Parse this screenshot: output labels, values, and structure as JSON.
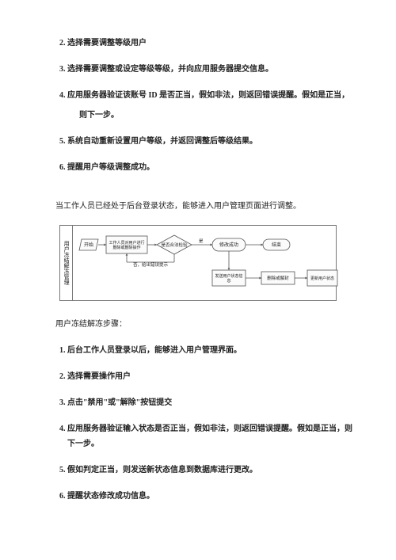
{
  "list1": {
    "start": 2,
    "items": [
      "选择需要调整等级用户",
      "选择需要调整或设定等级等级，并向应用服务器提交信息。",
      "应用服务器验证该账号 ID 是否正当，假如非法，则返回错误提醒。假如是正当，",
      "系统自动重新设置用户等级，并返回调整后等级结果。",
      "提醒用户等级调整成功。"
    ],
    "cont": "则下一步。"
  },
  "para1": "当工作人员已经处于后台登录状态，能够进入用户管理页面进行调整。",
  "diagram": {
    "sidebar": "用户冻结解冻管理",
    "node_start": "开始",
    "node_staff": "工作人员对用户进行删除或删除操作",
    "node_check": "是否合法检验",
    "yes": "是",
    "node_modify": "修改成功",
    "node_end": "结束",
    "no": "否，给出错误提示",
    "node_send": "发送用户状态信息",
    "node_db": "删除或解封",
    "node_update": "更新用户状态",
    "colors": {
      "line": "#555555",
      "fill": "#fbfbfb",
      "text": "#222222"
    }
  },
  "section2": "用户冻结解冻步骤：",
  "list2": {
    "start": 1,
    "items": [
      "后台工作人员登录以后，能够进入用户管理界面。",
      "选择需要操作用户",
      "点击\"禁用\"或\"解除\"按钮提交",
      "应用服务器验证输入状态是否正当，假如非法，则返回错误提醒。假如是正当，则下一步。",
      "假如判定正当，则发送新状态信息到数据库进行更改。",
      "提醒状态修改成功信息。"
    ]
  }
}
